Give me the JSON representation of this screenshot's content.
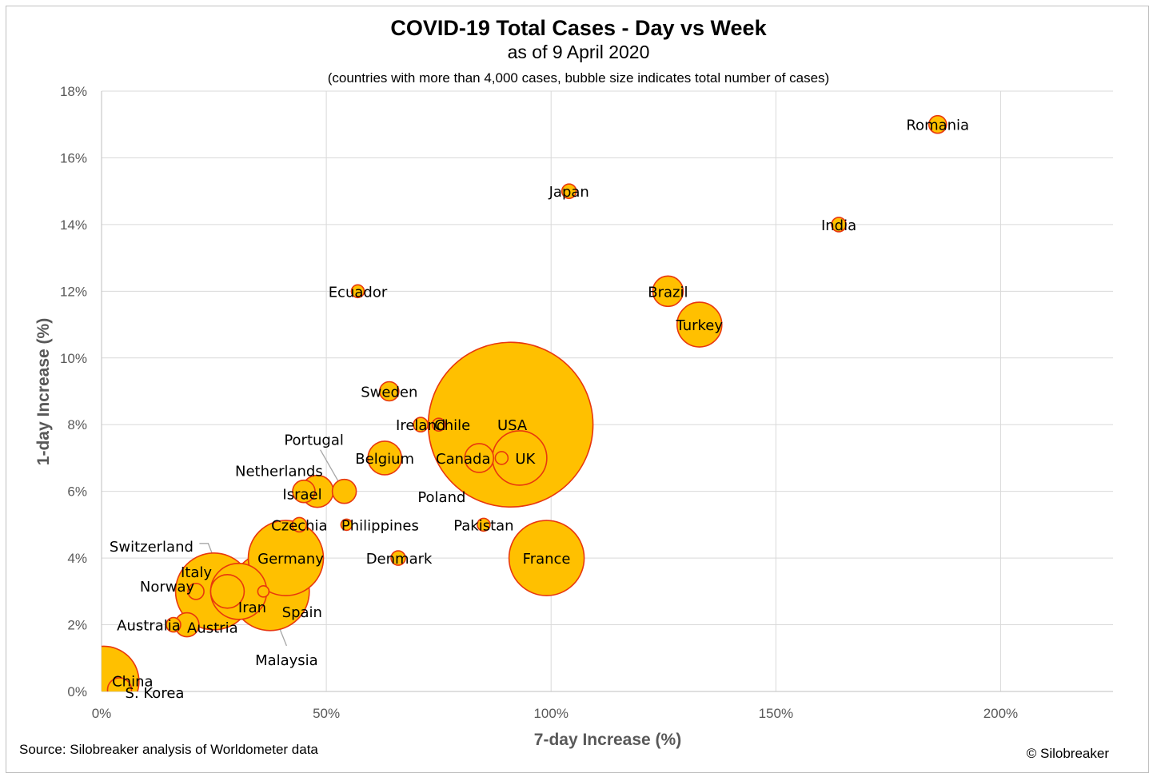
{
  "chart_data": {
    "type": "scatter",
    "subtype": "bubble",
    "title": "COVID-19 Total Cases - Day vs Week",
    "subtitle": "as of 9 April 2020",
    "note": "(countries with more than 4,000 cases, bubble size indicates total number of cases)",
    "xlabel": "7-day Increase (%)",
    "ylabel": "1-day Increase (%)",
    "xlim": [
      0,
      225
    ],
    "ylim": [
      0,
      18
    ],
    "x_ticks": [
      0,
      50,
      100,
      150,
      200
    ],
    "y_ticks": [
      0,
      2,
      4,
      6,
      8,
      10,
      12,
      14,
      16,
      18
    ],
    "x_tick_labels": [
      "0%",
      "50%",
      "100%",
      "150%",
      "200%"
    ],
    "y_tick_labels": [
      "0%",
      "2%",
      "4%",
      "6%",
      "8%",
      "10%",
      "12%",
      "14%",
      "16%",
      "18%"
    ],
    "grid": {
      "x": true,
      "y": true
    },
    "colors": {
      "fill": "#FFC000",
      "stroke": "#E8380D",
      "grid": "#d9d9d9",
      "leader": "#a6a6a6"
    },
    "points": [
      {
        "name": "USA",
        "x": 91,
        "y": 8,
        "r": 103
      },
      {
        "name": "Spain",
        "x": 37.5,
        "y": 3,
        "r": 49
      },
      {
        "name": "Italy",
        "x": 25,
        "y": 3,
        "r": 48
      },
      {
        "name": "Germany",
        "x": 41,
        "y": 4,
        "r": 47
      },
      {
        "name": "France",
        "x": 99,
        "y": 4,
        "r": 47
      },
      {
        "name": "China",
        "x": 0.5,
        "y": 0.3,
        "r": 44
      },
      {
        "name": "Iran",
        "x": 30.5,
        "y": 3,
        "r": 35
      },
      {
        "name": "UK",
        "x": 93,
        "y": 7,
        "r": 34
      },
      {
        "name": "Turkey",
        "x": 133,
        "y": 11,
        "r": 28
      },
      {
        "name": "Belgium",
        "x": 63,
        "y": 7,
        "r": 21
      },
      {
        "name": "Switzerland",
        "x": 28,
        "y": 3,
        "r": 21
      },
      {
        "name": "Netherlands",
        "x": 48,
        "y": 6,
        "r": 20
      },
      {
        "name": "Canada",
        "x": 84,
        "y": 7,
        "r": 18
      },
      {
        "name": "Brazil",
        "x": 126,
        "y": 12,
        "r": 19
      },
      {
        "name": "Portugal",
        "x": 54,
        "y": 6,
        "r": 15
      },
      {
        "name": "Austria",
        "x": 19,
        "y": 2,
        "r": 15
      },
      {
        "name": "S. Korea",
        "x": 4,
        "y": 0.05,
        "r": 15
      },
      {
        "name": "Israel",
        "x": 45,
        "y": 6,
        "r": 14
      },
      {
        "name": "Sweden",
        "x": 64,
        "y": 9,
        "r": 12
      },
      {
        "name": "Norway",
        "x": 21,
        "y": 3,
        "r": 10
      },
      {
        "name": "Australia",
        "x": 16,
        "y": 2,
        "r": 9
      },
      {
        "name": "Czechia",
        "x": 44,
        "y": 5,
        "r": 9
      },
      {
        "name": "Ireland",
        "x": 71,
        "y": 8,
        "r": 9
      },
      {
        "name": "Denmark",
        "x": 66,
        "y": 4,
        "r": 9
      },
      {
        "name": "Chile",
        "x": 75,
        "y": 8,
        "r": 8
      },
      {
        "name": "Poland",
        "x": 89,
        "y": 7,
        "r": 8
      },
      {
        "name": "Romania",
        "x": 186,
        "y": 17,
        "r": 11
      },
      {
        "name": "Ecuador",
        "x": 57,
        "y": 12,
        "r": 8
      },
      {
        "name": "Japan",
        "x": 104,
        "y": 15,
        "r": 9
      },
      {
        "name": "India",
        "x": 164,
        "y": 14,
        "r": 9
      },
      {
        "name": "Pakistan",
        "x": 85,
        "y": 5,
        "r": 8
      },
      {
        "name": "Malaysia",
        "x": 36,
        "y": 3,
        "r": 7
      },
      {
        "name": "Philippines",
        "x": 54.5,
        "y": 5,
        "r": 7
      }
    ],
    "source": "Source: Silobreaker analysis of Worldometer data",
    "credit": "© Silobreaker"
  }
}
